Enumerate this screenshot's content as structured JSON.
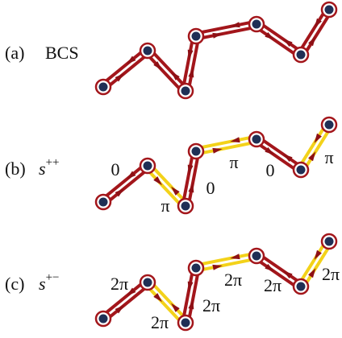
{
  "panels": [
    {
      "label": "(a)",
      "name": "BCS",
      "segment_colors": [
        "#a3161b",
        "#a3161b",
        "#a3161b",
        "#a3161b",
        "#a3161b",
        "#a3161b"
      ],
      "phases": []
    },
    {
      "label": "(b)",
      "name": "s",
      "superscript": "++",
      "segment_colors": [
        "#a3161b",
        "#f3d21a",
        "#a3161b",
        "#f3d21a",
        "#a3161b",
        "#f3d21a"
      ],
      "phases": [
        "0",
        "π",
        "0",
        "π",
        "0",
        "π"
      ]
    },
    {
      "label": "(c)",
      "name": "s",
      "superscript": "+−",
      "segment_colors": [
        "#a3161b",
        "#f3d21a",
        "#a3161b",
        "#f3d21a",
        "#a3161b",
        "#f3d21a"
      ],
      "phases": [
        "2π",
        "2π",
        "2π",
        "2π",
        "2π",
        "2π"
      ]
    }
  ]
}
